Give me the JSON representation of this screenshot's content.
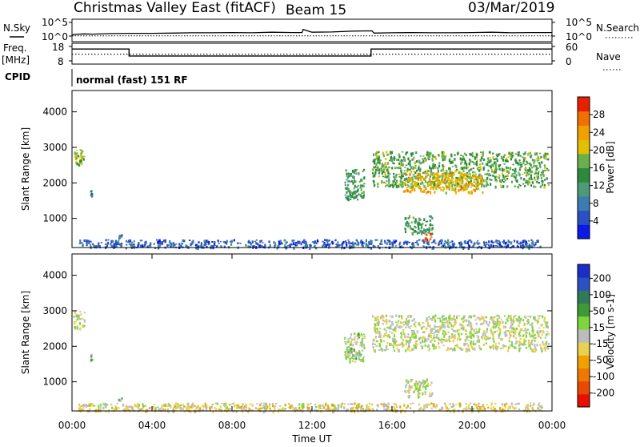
{
  "header": {
    "title": "Christmas Valley East (fitACF)",
    "beam": "Beam 15",
    "date": "03/Mar/2019"
  },
  "side_labels": {
    "nsky": "N.Sky",
    "nsearch": "N.Search",
    "freq_line1": "Freq.",
    "freq_line2": "[MHz]",
    "nave": "Nave",
    "cpid": "CPID",
    "mode": "normal (fast) 151 RF"
  },
  "colors": {
    "power_scale": [
      "#0a1ae8",
      "#2b50c4",
      "#3c7cae",
      "#4d9a78",
      "#2d8a3c",
      "#6ab04a",
      "#e0c000",
      "#f0a000",
      "#f07000",
      "#e82000"
    ],
    "velocity_scale": [
      "#1b2ec8",
      "#2c52c0",
      "#2f7a5a",
      "#3f9a36",
      "#7cd63a",
      "#bcbcbc",
      "#e8d050",
      "#f0a000",
      "#f07800",
      "#e84a00",
      "#e81000"
    ]
  },
  "chart_data": [
    {
      "type": "line",
      "name": "nsky-panel",
      "left_ticks": [
        "10^5",
        "10^0"
      ],
      "right_ticks": [
        "10^5",
        "10^0"
      ],
      "series": [
        {
          "name": "N.Sky",
          "style": "solid",
          "x": [
            0,
            0.1,
            0.6,
            1,
            2,
            3,
            4,
            5,
            6,
            7,
            8,
            9,
            10,
            11,
            11.5,
            11.55,
            12,
            13,
            14,
            15,
            15.1,
            16,
            17,
            18,
            19,
            20,
            21,
            22,
            23,
            24
          ],
          "y": [
            0.3,
            0.6,
            0.8,
            0.7,
            0.9,
            1.0,
            1.0,
            1.1,
            1.2,
            1.2,
            1.3,
            1.2,
            1.4,
            1.3,
            1.3,
            2.4,
            1.4,
            1.5,
            1.8,
            1.9,
            1.1,
            1.2,
            1.3,
            1.2,
            1.2,
            1.3,
            1.4,
            1.2,
            1.3,
            1.3
          ]
        },
        {
          "name": "N.Search",
          "style": "dotted",
          "x": [
            0,
            24
          ],
          "y": [
            0.05,
            0.05
          ]
        }
      ]
    },
    {
      "type": "line",
      "name": "freq-nave-panel",
      "left_ticks": [
        "18",
        "8"
      ],
      "right_ticks": [
        "60",
        "0"
      ],
      "series": [
        {
          "name": "Freq.",
          "style": "solid",
          "x": [
            0,
            2.85,
            2.85,
            14.95,
            14.95,
            24
          ],
          "y": [
            16.2,
            16.2,
            11.4,
            11.4,
            16.2,
            16.2
          ]
        },
        {
          "name": "Nave",
          "style": "dotted",
          "x": [
            0,
            24
          ],
          "y": [
            12.6,
            12.6
          ]
        }
      ]
    },
    {
      "type": "heatmap",
      "name": "power-panel",
      "ylabel": "Slant Range [km]",
      "yticks": [
        1000,
        2000,
        3000,
        4000
      ],
      "ylim": [
        180,
        4600
      ],
      "colorbar_label": "Power [dB]",
      "colorbar_ticks": [
        "28",
        "24",
        "20",
        "16",
        "12",
        "8",
        "4"
      ],
      "colorbar_range": [
        0,
        32
      ],
      "regions": [
        {
          "t": [
            0.05,
            0.6
          ],
          "r": [
            2500,
            3000
          ],
          "v": 18
        },
        {
          "t": [
            0.9,
            1.0
          ],
          "r": [
            1600,
            1800
          ],
          "v": 8
        },
        {
          "t": [
            2.3,
            2.5
          ],
          "r": [
            480,
            560
          ],
          "v": 8
        },
        {
          "t": [
            0.3,
            23.5
          ],
          "r": [
            190,
            420
          ],
          "v": 6
        },
        {
          "t": [
            13.6,
            14.6
          ],
          "r": [
            1550,
            2400
          ],
          "v": 14
        },
        {
          "t": [
            15.0,
            23.8
          ],
          "r": [
            1900,
            2900
          ],
          "v": 16
        },
        {
          "t": [
            16.5,
            20.5
          ],
          "r": [
            1750,
            2300
          ],
          "v": 22
        },
        {
          "t": [
            16.6,
            18.0
          ],
          "r": [
            600,
            1100
          ],
          "v": 14
        },
        {
          "t": [
            17.6,
            18.0
          ],
          "r": [
            380,
            600
          ],
          "v": 28
        }
      ]
    },
    {
      "type": "heatmap",
      "name": "velocity-panel",
      "ylabel": "Slant Range [km]",
      "yticks": [
        1000,
        2000,
        3000,
        4000
      ],
      "ylim": [
        180,
        4600
      ],
      "xticks": [
        "00:00",
        "04:00",
        "08:00",
        "12:00",
        "16:00",
        "20:00",
        "00:00"
      ],
      "xlabel": "Time UT",
      "colorbar_label": "Velocity [m s-1]",
      "colorbar_ticks": [
        "200",
        "100",
        "50",
        "15",
        "-15",
        "-50",
        "-100",
        "-200"
      ],
      "colorbar_range": [
        -250,
        250
      ],
      "regions": [
        {
          "t": [
            0.05,
            0.6
          ],
          "r": [
            2500,
            3000
          ],
          "v": 0
        },
        {
          "t": [
            0.9,
            1.0
          ],
          "r": [
            1600,
            1800
          ],
          "v": 60
        },
        {
          "t": [
            2.3,
            2.5
          ],
          "r": [
            480,
            560
          ],
          "v": 40
        },
        {
          "t": [
            0.3,
            23.5
          ],
          "r": [
            190,
            420
          ],
          "v": -30
        },
        {
          "t": [
            13.6,
            14.6
          ],
          "r": [
            1550,
            2400
          ],
          "v": 30
        },
        {
          "t": [
            15.0,
            23.8
          ],
          "r": [
            1900,
            2900
          ],
          "v": 0
        },
        {
          "t": [
            16.6,
            18.0
          ],
          "r": [
            600,
            1100
          ],
          "v": 0
        }
      ]
    }
  ]
}
